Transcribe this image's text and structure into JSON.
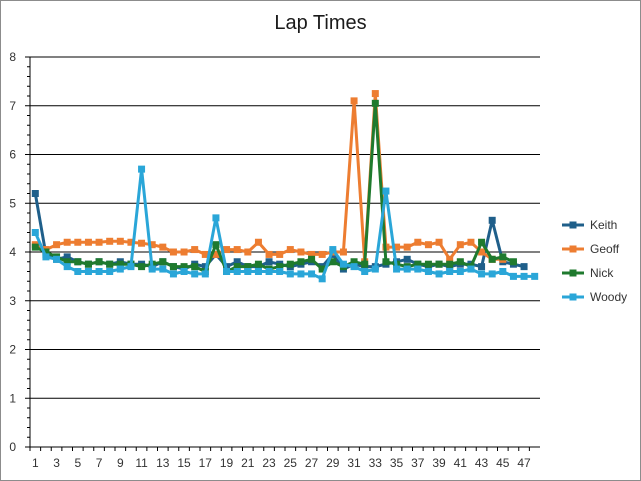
{
  "chart_data": {
    "type": "line",
    "title": "Lap Times",
    "xlabel": "",
    "ylabel": "",
    "ylim": [
      0,
      8
    ],
    "yticks": [
      0,
      1,
      2,
      3,
      4,
      5,
      6,
      7,
      8
    ],
    "xlim": [
      1,
      48
    ],
    "xticks": [
      1,
      3,
      5,
      7,
      9,
      11,
      13,
      15,
      17,
      19,
      21,
      23,
      25,
      27,
      29,
      31,
      33,
      35,
      37,
      39,
      41,
      43,
      45,
      47
    ],
    "grid": "horizontal",
    "legend_position": "right",
    "series": [
      {
        "name": "Keith",
        "color": "#1f5f8a",
        "x": [
          1,
          2,
          3,
          4,
          5,
          6,
          7,
          8,
          9,
          10,
          11,
          12,
          13,
          14,
          15,
          16,
          17,
          18,
          19,
          20,
          21,
          22,
          23,
          24,
          25,
          26,
          27,
          28,
          29,
          30,
          31,
          32,
          33,
          34,
          35,
          36,
          37,
          38,
          39,
          40,
          41,
          42,
          43,
          44,
          45,
          46,
          47
        ],
        "values": [
          5.2,
          3.95,
          3.85,
          3.9,
          3.8,
          3.75,
          3.8,
          3.75,
          3.8,
          3.75,
          3.75,
          3.7,
          3.8,
          3.7,
          3.65,
          3.75,
          3.7,
          3.95,
          3.7,
          3.8,
          3.7,
          3.7,
          3.8,
          3.75,
          3.7,
          3.75,
          3.8,
          3.7,
          3.95,
          3.65,
          3.75,
          3.7,
          3.7,
          3.75,
          3.8,
          3.85,
          3.75,
          3.7,
          3.75,
          3.7,
          3.75,
          3.75,
          3.7,
          4.65,
          3.8,
          3.75,
          3.7
        ]
      },
      {
        "name": "Geoff",
        "color": "#ed7d31",
        "x": [
          1,
          2,
          3,
          4,
          5,
          6,
          7,
          8,
          9,
          10,
          11,
          12,
          13,
          14,
          15,
          16,
          17,
          18,
          19,
          20,
          21,
          22,
          23,
          24,
          25,
          26,
          27,
          28,
          29,
          30,
          31,
          32,
          33,
          34,
          35,
          36,
          37,
          38,
          39,
          40,
          41,
          42,
          43,
          44,
          45
        ],
        "values": [
          4.15,
          4.05,
          4.15,
          4.2,
          4.2,
          4.2,
          4.2,
          4.22,
          4.22,
          4.2,
          4.18,
          4.15,
          4.1,
          4.0,
          4.0,
          4.05,
          3.95,
          3.95,
          4.05,
          4.05,
          4.0,
          4.2,
          3.95,
          3.95,
          4.05,
          4.0,
          3.95,
          3.95,
          4.0,
          4.0,
          7.1,
          3.8,
          7.25,
          4.1,
          4.1,
          4.1,
          4.2,
          4.15,
          4.2,
          3.85,
          4.15,
          4.2,
          4.0,
          3.85,
          3.85
        ]
      },
      {
        "name": "Nick",
        "color": "#1f7a2e",
        "x": [
          1,
          2,
          3,
          4,
          5,
          6,
          7,
          8,
          9,
          10,
          11,
          12,
          13,
          14,
          15,
          16,
          17,
          18,
          19,
          20,
          21,
          22,
          23,
          24,
          25,
          26,
          27,
          28,
          29,
          30,
          31,
          32,
          33,
          34,
          35,
          36,
          37,
          38,
          39,
          40,
          41,
          42,
          43,
          44,
          45,
          46
        ],
        "values": [
          4.1,
          4.0,
          3.9,
          3.8,
          3.8,
          3.75,
          3.8,
          3.75,
          3.75,
          3.75,
          3.7,
          3.75,
          3.8,
          3.7,
          3.7,
          3.7,
          3.6,
          4.15,
          3.6,
          3.7,
          3.7,
          3.75,
          3.65,
          3.7,
          3.75,
          3.8,
          3.85,
          3.65,
          3.8,
          3.7,
          3.8,
          3.75,
          7.05,
          3.8,
          3.75,
          3.7,
          3.75,
          3.75,
          3.75,
          3.75,
          3.8,
          3.7,
          4.2,
          3.85,
          3.9,
          3.8
        ]
      },
      {
        "name": "Woody",
        "color": "#2aa6d8",
        "x": [
          1,
          2,
          3,
          4,
          5,
          6,
          7,
          8,
          9,
          10,
          11,
          12,
          13,
          14,
          15,
          16,
          17,
          18,
          19,
          20,
          21,
          22,
          23,
          24,
          25,
          26,
          27,
          28,
          29,
          30,
          31,
          32,
          33,
          34,
          35,
          36,
          37,
          38,
          39,
          40,
          41,
          42,
          43,
          44,
          45,
          46,
          47,
          48
        ],
        "values": [
          4.4,
          3.9,
          3.85,
          3.7,
          3.6,
          3.6,
          3.6,
          3.6,
          3.65,
          3.7,
          5.7,
          3.65,
          3.65,
          3.55,
          3.6,
          3.55,
          3.55,
          4.7,
          3.6,
          3.6,
          3.6,
          3.6,
          3.6,
          3.6,
          3.55,
          3.55,
          3.55,
          3.45,
          4.05,
          3.75,
          3.7,
          3.6,
          3.65,
          5.25,
          3.65,
          3.65,
          3.65,
          3.6,
          3.55,
          3.6,
          3.6,
          3.65,
          3.55,
          3.55,
          3.6,
          3.5,
          3.5,
          3.5
        ]
      }
    ]
  }
}
